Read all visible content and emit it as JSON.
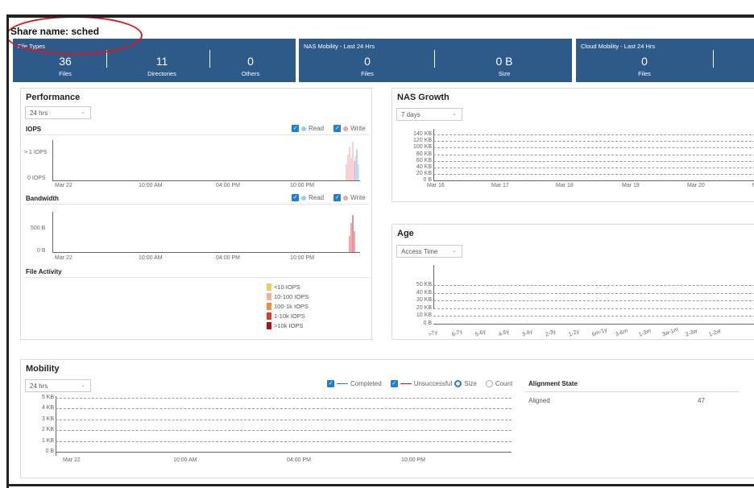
{
  "share": {
    "title": "Share name: sched"
  },
  "file_types": {
    "title": "File Types",
    "items": [
      {
        "value": "36",
        "label": "Files"
      },
      {
        "value": "11",
        "label": "Directories"
      },
      {
        "value": "0",
        "label": "Others"
      }
    ]
  },
  "nas_mobility": {
    "title": "NAS Mobility - Last 24 Hrs",
    "items": [
      {
        "value": "0",
        "label": "Files"
      },
      {
        "value": "0 B",
        "label": "Size"
      }
    ]
  },
  "cloud_mobility": {
    "title": "Cloud Mobility - Last 24 Hrs",
    "items": [
      {
        "value": "0",
        "label": "Files"
      }
    ]
  },
  "performance": {
    "title": "Performance",
    "range": "24 hrs",
    "iops": {
      "title": "IOPS",
      "y_labels": [
        "> 1 IOPS",
        "0 IOPS"
      ]
    },
    "bandwidth": {
      "title": "Bandwidth",
      "y_labels": [
        "500 B",
        "0 B"
      ]
    },
    "read_label": "Read",
    "write_label": "Write",
    "x_labels": [
      "Mar 22",
      "10:00 AM",
      "04:00 PM",
      "10:00 PM"
    ],
    "file_activity": {
      "title": "File Activity",
      "legend": [
        {
          "label": "<10 IOPS",
          "color": "#f7c85c"
        },
        {
          "label": "10-100 IOPS",
          "color": "#f4b0a0"
        },
        {
          "label": "100-1k IOPS",
          "color": "#f08a3c"
        },
        {
          "label": "1-10k IOPS",
          "color": "#e03a28"
        },
        {
          "label": ">10k IOPS",
          "color": "#b0101a"
        }
      ]
    }
  },
  "nas_growth": {
    "title": "NAS Growth",
    "range": "7 days",
    "y_labels": [
      "140 KB",
      "120 KB",
      "100 KB",
      "80 KB",
      "60 KB",
      "40 KB",
      "20 KB",
      "0 B"
    ],
    "x_labels": [
      "Mar 16",
      "Mar 17",
      "Mar 18",
      "Mar 19",
      "Mar 20",
      "Ma"
    ]
  },
  "age": {
    "title": "Age",
    "mode": "Access Time",
    "y_labels": [
      "50 KB",
      "40 KB",
      "30 KB",
      "20 KB",
      "10 KB",
      "0 B"
    ],
    "x_labels": [
      ">7y",
      "6-7y",
      "5-6y",
      "4-5y",
      "3-4y",
      "2-3y",
      "1-2y",
      "6m-1y",
      "3-6m",
      "1-3m",
      "3w-1m",
      "2-3w",
      "1-2w"
    ]
  },
  "mobility": {
    "title": "Mobility",
    "range": "24 hrs",
    "completed_label": "Completed",
    "unsuccessful_label": "Unsuccessful",
    "size_label": "Size",
    "count_label": "Count",
    "y_labels": [
      "5 KB",
      "4 KB",
      "3 KB",
      "2 KB",
      "1 KB",
      "0 B"
    ],
    "x_labels": [
      "Mar 22",
      "10:00 AM",
      "04:00 PM",
      "10:00 PM"
    ],
    "alignment": {
      "title": "Alignment State",
      "rows": [
        {
          "label": "Aligned",
          "value": "47"
        }
      ]
    }
  },
  "colors": {
    "panel_blue": "#2e5a8a",
    "read_blue": "#9cc8f0",
    "write_pink": "#f4a0a8",
    "completed_line": "#1e7fd8",
    "unsuccessful_line": "#d9181e",
    "annotation_red": "#d9181e"
  }
}
